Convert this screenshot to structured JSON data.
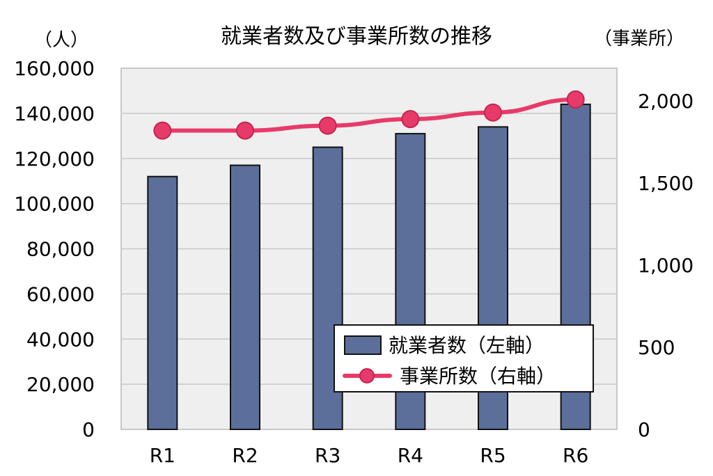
{
  "chart_data": {
    "type": "bar+line",
    "title": "就業者数及び事業所数の推移",
    "left_unit": "（人）",
    "right_unit": "（事業所）",
    "categories": [
      "R1",
      "R2",
      "R3",
      "R4",
      "R5",
      "R6"
    ],
    "series": [
      {
        "name": "就業者数（左軸）",
        "type": "bar",
        "axis": "left",
        "values": [
          112000,
          117000,
          125000,
          131000,
          134000,
          144000
        ],
        "color": "#5b6f9a"
      },
      {
        "name": "事業所数（右軸）",
        "type": "line",
        "axis": "right",
        "values": [
          1820,
          1820,
          1850,
          1890,
          1930,
          2010
        ],
        "color": "#e83a6a"
      }
    ],
    "left_axis": {
      "min": 0,
      "max": 160000,
      "step": 20000,
      "tick_labels": [
        "0",
        "20,000",
        "40,000",
        "60,000",
        "80,000",
        "100,000",
        "120,000",
        "140,000",
        "160,000"
      ]
    },
    "right_axis": {
      "min": 0,
      "max": 2200,
      "step": 500,
      "tick_labels": [
        "0",
        "500",
        "1,000",
        "1,500",
        "2,000"
      ]
    },
    "grid": true,
    "legend_position": "bottom-right",
    "plot_background": "#efefef"
  }
}
